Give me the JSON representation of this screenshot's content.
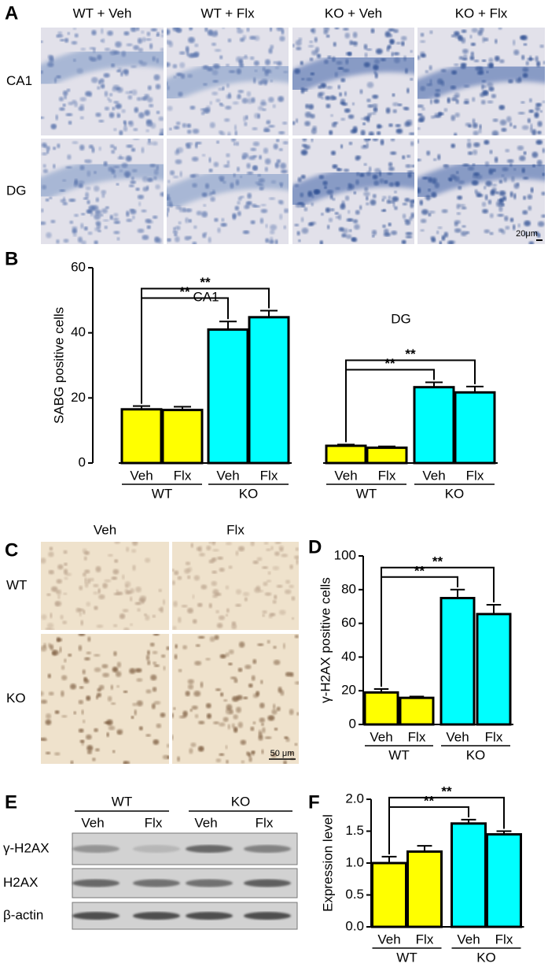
{
  "figure_a": {
    "label": "A",
    "columns": [
      "WT + Veh",
      "WT + Flx",
      "KO + Veh",
      "KO + Flx"
    ],
    "rows": [
      "CA1",
      "DG"
    ],
    "scale_bar": "20μm"
  },
  "chart_data": [
    {
      "type": "bar",
      "panel": "B",
      "ylabel": "SABG positive cells",
      "ylim": [
        0,
        60
      ],
      "yticks": [
        0,
        20,
        40,
        60
      ],
      "groups": [
        {
          "name": "CA1",
          "categories": [
            "Veh",
            "Flx",
            "Veh",
            "Flx"
          ],
          "subgroups": [
            "WT",
            "KO"
          ],
          "values": [
            16.5,
            16.3,
            41,
            44.8
          ],
          "errors": [
            1,
            1,
            2.5,
            2
          ],
          "colors": [
            "#ffff00",
            "#ffff00",
            "#00ffff",
            "#00ffff"
          ],
          "annotations": [
            "**",
            "**"
          ]
        },
        {
          "name": "DG",
          "categories": [
            "Veh",
            "Flx",
            "Veh",
            "Flx"
          ],
          "subgroups": [
            "WT",
            "KO"
          ],
          "values": [
            5.3,
            4.7,
            23.3,
            21.7
          ],
          "errors": [
            0.4,
            0.4,
            1.5,
            1.8
          ],
          "colors": [
            "#ffff00",
            "#ffff00",
            "#00ffff",
            "#00ffff"
          ],
          "annotations": [
            "**",
            "**"
          ]
        }
      ]
    },
    {
      "type": "bar",
      "panel": "D",
      "ylabel": "γ-H2AX positive cells",
      "ylim": [
        0,
        100
      ],
      "yticks": [
        0,
        20,
        40,
        60,
        80,
        100
      ],
      "groups": [
        {
          "categories": [
            "Veh",
            "Flx",
            "Veh",
            "Flx"
          ],
          "subgroups": [
            "WT",
            "KO"
          ],
          "values": [
            19,
            15.8,
            75,
            65.5
          ],
          "errors": [
            2,
            0.8,
            5,
            5.5
          ],
          "colors": [
            "#ffff00",
            "#ffff00",
            "#00ffff",
            "#00ffff"
          ],
          "annotations": [
            "**",
            "**"
          ]
        }
      ]
    },
    {
      "type": "bar",
      "panel": "F",
      "ylabel": "Expression  level",
      "ylim": [
        0,
        2
      ],
      "yticks": [
        {
          "value": 0,
          "label": "0.0"
        },
        {
          "value": 0.5,
          "label": "0.5"
        },
        {
          "value": 1,
          "label": "1.0"
        },
        {
          "value": 1.5,
          "label": "1.5"
        },
        {
          "value": 2,
          "label": "2.0"
        }
      ],
      "groups": [
        {
          "categories": [
            "Veh",
            "Flx",
            "Veh",
            "Flx"
          ],
          "subgroups": [
            "WT",
            "KO"
          ],
          "values": [
            1.0,
            1.18,
            1.62,
            1.45
          ],
          "errors": [
            0.1,
            0.09,
            0.06,
            0.05
          ],
          "colors": [
            "#ffff00",
            "#ffff00",
            "#00ffff",
            "#00ffff"
          ],
          "annotations": [
            "**",
            "**"
          ]
        }
      ]
    }
  ],
  "figure_c": {
    "label": "C",
    "columns": [
      "Veh",
      "Flx"
    ],
    "rows": [
      "WT",
      "KO"
    ],
    "scale_bar": "50 μm"
  },
  "figure_e": {
    "label": "E",
    "groups": [
      "WT",
      "KO"
    ],
    "lanes": [
      "Veh",
      "Flx",
      "Veh",
      "Flx"
    ],
    "rows": [
      "γ-H2AX",
      "H2AX",
      "β-actin"
    ]
  }
}
